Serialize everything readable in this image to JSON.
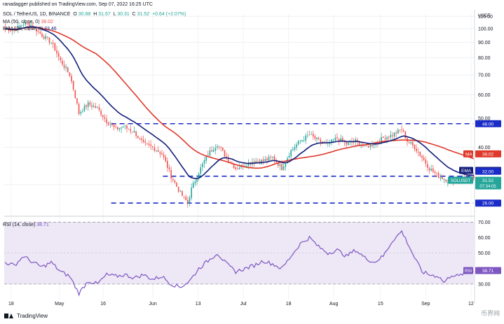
{
  "header": {
    "published": "ranadagger published on TradingView.com, Sep 07, 2022 16:25 UTC",
    "symbol": "SOL / TetherUS, 1D, BINANCE",
    "ohlc": {
      "o_label": "O",
      "o": "30.88",
      "h_label": "H",
      "h": "31.67",
      "l_label": "L",
      "l": "30.31",
      "c_label": "C",
      "c": "31.52",
      "chg": "+0.64 (+2.07%)"
    },
    "ma_legend": "MA (50, close, 0)",
    "ma_value": "38.02",
    "ema_legend": "EMA (20, close, 0)",
    "ema_value": "33.46",
    "rsi_legend": "RSI (14, close)",
    "rsi_value": "38.71"
  },
  "footer": {
    "brand": "TradingView",
    "watermark": "币界网"
  },
  "colors": {
    "candle_up": "#26a69a",
    "candle_down": "#ef5350",
    "ema": "#131f7a",
    "ma": "#e0392b",
    "rsi": "#7e57c2",
    "rsi_band": "#ede7f6",
    "level": "#1a2cc7",
    "axis_text": "#131722"
  },
  "chart_data": [
    {
      "type": "candlestick",
      "title": "SOL / TetherUS, 1D, BINANCE",
      "yaxis_unit": "USDT",
      "scale": "log",
      "ylim": [
        24,
        112
      ],
      "yticks": [
        "110.00",
        "100.00",
        "90.00",
        "80.00",
        "70.00",
        "60.00",
        "50.00",
        "40.00",
        "30.00"
      ],
      "xticks": [
        "18",
        "May",
        "16",
        "Jun",
        "13",
        "Jul",
        "18",
        "Aug",
        "15",
        "Sep",
        "12"
      ],
      "horizontal_levels": [
        "48.00",
        "32.00",
        "26.00"
      ],
      "last_price": {
        "label": "SOLUSDT",
        "value": "31.52",
        "countdown": "07:34:05"
      },
      "ma_tag": {
        "label": "MA",
        "value": "38.02"
      },
      "ema_tag": {
        "label": "EMA",
        "value": "33.46"
      },
      "close_anchors": [
        [
          0,
          100
        ],
        [
          5,
          99
        ],
        [
          10,
          104
        ],
        [
          14,
          103
        ],
        [
          20,
          95
        ],
        [
          25,
          90
        ],
        [
          30,
          78
        ],
        [
          35,
          70
        ],
        [
          40,
          52
        ],
        [
          45,
          56
        ],
        [
          50,
          54
        ],
        [
          55,
          49
        ],
        [
          60,
          46
        ],
        [
          64,
          47
        ],
        [
          70,
          45
        ],
        [
          75,
          41
        ],
        [
          80,
          40
        ],
        [
          85,
          38
        ],
        [
          90,
          32
        ],
        [
          95,
          28
        ],
        [
          99,
          26
        ],
        [
          101,
          29
        ],
        [
          105,
          33
        ],
        [
          110,
          38
        ],
        [
          115,
          41
        ],
        [
          120,
          37
        ],
        [
          125,
          34
        ],
        [
          130,
          35
        ],
        [
          135,
          36
        ],
        [
          140,
          36
        ],
        [
          145,
          37
        ],
        [
          150,
          34
        ],
        [
          155,
          39
        ],
        [
          160,
          42
        ],
        [
          165,
          44
        ],
        [
          170,
          42
        ],
        [
          175,
          41
        ],
        [
          180,
          43
        ],
        [
          185,
          41
        ],
        [
          190,
          42
        ],
        [
          195,
          40
        ],
        [
          200,
          41
        ],
        [
          205,
          43
        ],
        [
          210,
          44
        ],
        [
          215,
          46
        ],
        [
          218,
          42
        ],
        [
          222,
          40
        ],
        [
          226,
          37
        ],
        [
          230,
          34
        ],
        [
          235,
          32
        ],
        [
          240,
          31
        ],
        [
          245,
          31.3
        ],
        [
          250,
          31.5
        ],
        [
          254,
          31.52
        ]
      ],
      "series": [
        {
          "name": "EMA (20, close, 0)",
          "last": "33.46"
        },
        {
          "name": "MA (50, close, 0)",
          "last": "38.02"
        }
      ]
    },
    {
      "type": "line",
      "title": "RSI (14, close)",
      "ylim": [
        20,
        72
      ],
      "yticks": [
        "70.00",
        "60.00",
        "50.00",
        "40.00",
        "30.00"
      ],
      "bands": [
        30,
        70
      ],
      "last": "38.71",
      "anchors": [
        [
          0,
          44
        ],
        [
          5,
          42
        ],
        [
          10,
          48
        ],
        [
          15,
          44
        ],
        [
          20,
          41
        ],
        [
          25,
          44
        ],
        [
          30,
          38
        ],
        [
          35,
          35
        ],
        [
          40,
          24
        ],
        [
          45,
          32
        ],
        [
          50,
          30
        ],
        [
          55,
          36
        ],
        [
          60,
          35
        ],
        [
          65,
          36
        ],
        [
          70,
          34
        ],
        [
          75,
          36
        ],
        [
          80,
          33
        ],
        [
          85,
          35
        ],
        [
          90,
          30
        ],
        [
          95,
          28
        ],
        [
          100,
          32
        ],
        [
          105,
          40
        ],
        [
          110,
          45
        ],
        [
          115,
          50
        ],
        [
          120,
          43
        ],
        [
          125,
          38
        ],
        [
          130,
          40
        ],
        [
          135,
          42
        ],
        [
          140,
          45
        ],
        [
          145,
          43
        ],
        [
          150,
          40
        ],
        [
          155,
          48
        ],
        [
          160,
          56
        ],
        [
          165,
          60
        ],
        [
          170,
          54
        ],
        [
          175,
          50
        ],
        [
          180,
          52
        ],
        [
          185,
          48
        ],
        [
          190,
          52
        ],
        [
          195,
          47
        ],
        [
          200,
          44
        ],
        [
          205,
          48
        ],
        [
          210,
          58
        ],
        [
          215,
          64
        ],
        [
          218,
          57
        ],
        [
          222,
          47
        ],
        [
          226,
          38
        ],
        [
          230,
          36
        ],
        [
          235,
          35
        ],
        [
          238,
          31
        ],
        [
          242,
          36
        ],
        [
          246,
          35
        ],
        [
          250,
          38
        ],
        [
          254,
          38.71
        ]
      ]
    }
  ]
}
